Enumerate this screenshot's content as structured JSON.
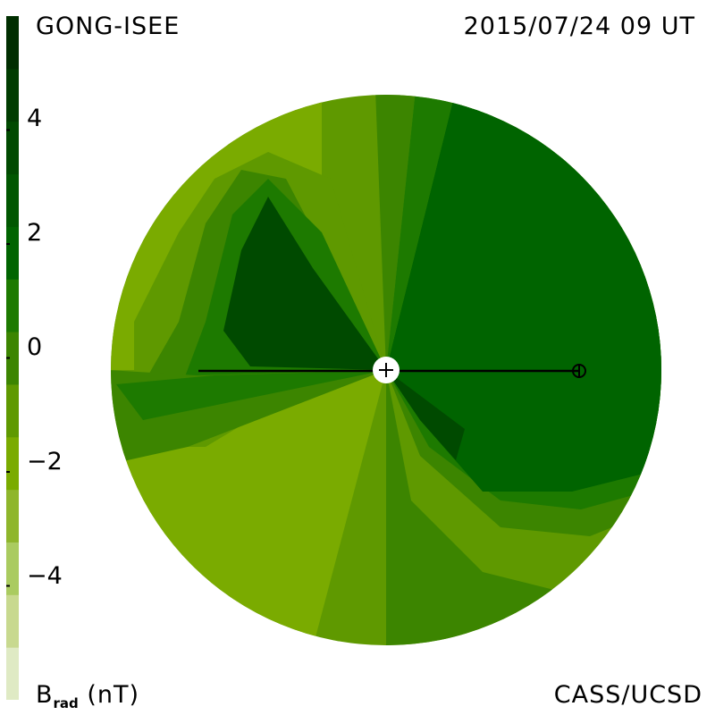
{
  "header": {
    "source": "GONG-ISEE",
    "timestamp": "2015/07/24 09 UT"
  },
  "footer": {
    "credit": "CASS/UCSD",
    "unit_main": "B",
    "unit_sub": "rad",
    "unit_suffix": "(nT)"
  },
  "colorbar": {
    "ticks": [
      {
        "label": "4",
        "value": 4
      },
      {
        "label": "2",
        "value": 2
      },
      {
        "label": "0",
        "value": 0
      },
      {
        "label": "−2",
        "value": -2
      },
      {
        "label": "−4",
        "value": -4
      }
    ],
    "range": [
      -6,
      6
    ],
    "levels": [
      "#dfeac4",
      "#c8d98f",
      "#aacb60",
      "#8fb62c",
      "#7aab00",
      "#5f9900",
      "#3c8500",
      "#1d7a00",
      "#006400",
      "#005700",
      "#004a00",
      "#003c00",
      "#002e00"
    ]
  },
  "colors": {
    "background": "#ffffff",
    "line": "#000000"
  }
}
